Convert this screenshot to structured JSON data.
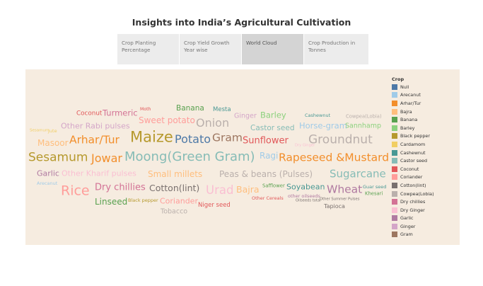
{
  "dashboard": {
    "title": "Insights into India’s Agricultural Cultivation"
  },
  "tabs": [
    {
      "label": "Crop Planting Percentage",
      "active": false
    },
    {
      "label": "Crop Yield Growth Year wise",
      "active": false
    },
    {
      "label": "World Cloud",
      "active": true
    },
    {
      "label": "Crop Production in Tonnes",
      "active": false
    }
  ],
  "legend": {
    "title": "Crop",
    "items": [
      {
        "label": "Null",
        "color": "#4e79a7"
      },
      {
        "label": "Arecanut",
        "color": "#a0cbe8"
      },
      {
        "label": "Arhar/Tur",
        "color": "#f28e2b"
      },
      {
        "label": "Bajra",
        "color": "#ffbe7d"
      },
      {
        "label": "Banana",
        "color": "#59a14f"
      },
      {
        "label": "Barley",
        "color": "#8cd17d"
      },
      {
        "label": "Black pepper",
        "color": "#b6992d"
      },
      {
        "label": "Cardamom",
        "color": "#f1ce63"
      },
      {
        "label": "Cashewnut",
        "color": "#499894"
      },
      {
        "label": "Castor seed",
        "color": "#86bcb6"
      },
      {
        "label": "Coconut",
        "color": "#e15759"
      },
      {
        "label": "Coriander",
        "color": "#ff9d9a"
      },
      {
        "label": "Cotton(lint)",
        "color": "#79706e"
      },
      {
        "label": "Cowpea(Lobia)",
        "color": "#bab0ac"
      },
      {
        "label": "Dry chillies",
        "color": "#d37295"
      },
      {
        "label": "Dry Ginger",
        "color": "#fabfd2"
      },
      {
        "label": "Garlic",
        "color": "#b07aa1"
      },
      {
        "label": "Ginger",
        "color": "#d4a6c8"
      },
      {
        "label": "Gram",
        "color": "#9d7660"
      }
    ]
  },
  "word_cloud": [
    {
      "text": "Banana",
      "color": "#59a14f"
    },
    {
      "text": "Mesta",
      "color": "#499894"
    },
    {
      "text": "Moth",
      "color": "#e15759"
    },
    {
      "text": "Coconut",
      "color": "#e15759"
    },
    {
      "text": "Turmeric",
      "color": "#d37295"
    },
    {
      "text": "Ginger",
      "color": "#d4a6c8"
    },
    {
      "text": "Barley",
      "color": "#8cd17d"
    },
    {
      "text": "Cashewnut",
      "color": "#499894"
    },
    {
      "text": "Cowpea(Lobia)",
      "color": "#bab0ac"
    },
    {
      "text": "Sweet potato",
      "color": "#ff9d9a"
    },
    {
      "text": "Onion",
      "color": "#bab0ac"
    },
    {
      "text": "Other Rabi pulses",
      "color": "#d4a6c8"
    },
    {
      "text": "Castor seed",
      "color": "#86bcb6"
    },
    {
      "text": "Horse-gram",
      "color": "#a0cbe8"
    },
    {
      "text": "Sannhamp",
      "color": "#8cd17d"
    },
    {
      "text": "Sesamum",
      "color": "#f1ce63"
    },
    {
      "text": "Jute",
      "color": "#f1ce63"
    },
    {
      "text": "Masoor",
      "color": "#ffbe7d"
    },
    {
      "text": "Arhar/Tur",
      "color": "#f28e2b"
    },
    {
      "text": "Maize",
      "color": "#b6992d"
    },
    {
      "text": "Potato",
      "color": "#4e79a7"
    },
    {
      "text": "Gram",
      "color": "#9d7660"
    },
    {
      "text": "Sunflower",
      "color": "#e15759"
    },
    {
      "text": "Groundnut",
      "color": "#bab0ac"
    },
    {
      "text": "Dry Ginger",
      "color": "#fabfd2"
    },
    {
      "text": "Sesamum",
      "color": "#b6992d"
    },
    {
      "text": "Jowar",
      "color": "#f28e2b"
    },
    {
      "text": "Moong(Green Gram)",
      "color": "#86bcb6"
    },
    {
      "text": "Ragi",
      "color": "#a0cbe8"
    },
    {
      "text": "Rapeseed &Mustard",
      "color": "#f28e2b"
    },
    {
      "text": "Garlic",
      "color": "#b07aa1"
    },
    {
      "text": "Other Kharif pulses",
      "color": "#fabfd2"
    },
    {
      "text": "Small millets",
      "color": "#ffbe7d"
    },
    {
      "text": "Peas & beans (Pulses)",
      "color": "#bab0ac"
    },
    {
      "text": "Sugarcane",
      "color": "#86bcb6"
    },
    {
      "text": "Arecanut",
      "color": "#a0cbe8"
    },
    {
      "text": "Rice",
      "color": "#ff9d9a"
    },
    {
      "text": "Dry chillies",
      "color": "#d37295"
    },
    {
      "text": "Cotton(lint)",
      "color": "#79706e"
    },
    {
      "text": "Urad",
      "color": "#fabfd2"
    },
    {
      "text": "Bajra",
      "color": "#ffbe7d"
    },
    {
      "text": "Safflower",
      "color": "#59a14f"
    },
    {
      "text": "Soyabean",
      "color": "#499894"
    },
    {
      "text": "Wheat",
      "color": "#b07aa1"
    },
    {
      "text": "Guar seed",
      "color": "#499894"
    },
    {
      "text": "Khesari",
      "color": "#59a14f"
    },
    {
      "text": "other oilseeds",
      "color": "#b07aa1"
    },
    {
      "text": "Oilseeds total",
      "color": "#79706e"
    },
    {
      "text": "Other Summer Pulses",
      "color": "#79706e"
    },
    {
      "text": "Linseed",
      "color": "#59a14f"
    },
    {
      "text": "Black pepper",
      "color": "#b6992d"
    },
    {
      "text": "Coriander",
      "color": "#ff9d9a"
    },
    {
      "text": "Niger seed",
      "color": "#e15759"
    },
    {
      "text": "Other Cereals",
      "color": "#e15759"
    },
    {
      "text": "Tapioca",
      "color": "#79706e"
    },
    {
      "text": "Tobacco",
      "color": "#bab0ac"
    }
  ]
}
